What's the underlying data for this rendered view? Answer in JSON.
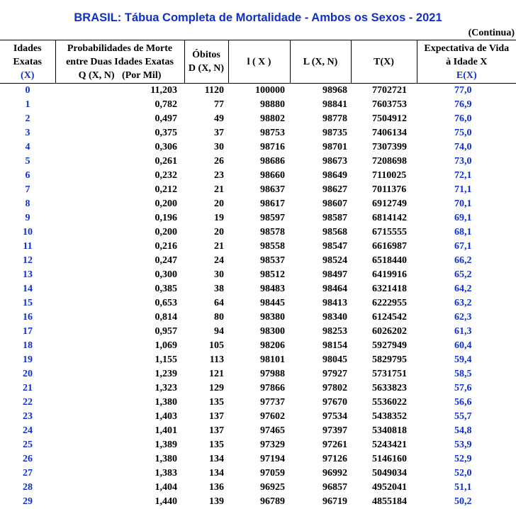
{
  "title": "BRASIL: Tábua Completa de Mortalidade - Ambos os Sexos - 2021",
  "continua": "(Continua)",
  "headers": {
    "age": [
      "Idades",
      "Exatas",
      "(X)"
    ],
    "q": [
      "Probabilidades de Morte",
      "entre Duas Idades Exatas",
      "Q (X, N)   (Por Mil)"
    ],
    "d": [
      "Óbitos",
      "D (X, N)"
    ],
    "l": [
      "l ( X )"
    ],
    "L": [
      "L (X, N)"
    ],
    "T": [
      "T(X)"
    ],
    "e": [
      "Expectativa de Vida",
      "à Idade X",
      "E(X)"
    ]
  },
  "rows": [
    [
      "0",
      "11,203",
      "1120",
      "100000",
      "98968",
      "7702721",
      "77,0"
    ],
    [
      "1",
      "0,782",
      "77",
      "98880",
      "98841",
      "7603753",
      "76,9"
    ],
    [
      "2",
      "0,497",
      "49",
      "98802",
      "98778",
      "7504912",
      "76,0"
    ],
    [
      "3",
      "0,375",
      "37",
      "98753",
      "98735",
      "7406134",
      "75,0"
    ],
    [
      "4",
      "0,306",
      "30",
      "98716",
      "98701",
      "7307399",
      "74,0"
    ],
    [
      "5",
      "0,261",
      "26",
      "98686",
      "98673",
      "7208698",
      "73,0"
    ],
    [
      "6",
      "0,232",
      "23",
      "98660",
      "98649",
      "7110025",
      "72,1"
    ],
    [
      "7",
      "0,212",
      "21",
      "98637",
      "98627",
      "7011376",
      "71,1"
    ],
    [
      "8",
      "0,200",
      "20",
      "98617",
      "98607",
      "6912749",
      "70,1"
    ],
    [
      "9",
      "0,196",
      "19",
      "98597",
      "98587",
      "6814142",
      "69,1"
    ],
    [
      "10",
      "0,200",
      "20",
      "98578",
      "98568",
      "6715555",
      "68,1"
    ],
    [
      "11",
      "0,216",
      "21",
      "98558",
      "98547",
      "6616987",
      "67,1"
    ],
    [
      "12",
      "0,247",
      "24",
      "98537",
      "98524",
      "6518440",
      "66,2"
    ],
    [
      "13",
      "0,300",
      "30",
      "98512",
      "98497",
      "6419916",
      "65,2"
    ],
    [
      "14",
      "0,385",
      "38",
      "98483",
      "98464",
      "6321418",
      "64,2"
    ],
    [
      "15",
      "0,653",
      "64",
      "98445",
      "98413",
      "6222955",
      "63,2"
    ],
    [
      "16",
      "0,814",
      "80",
      "98380",
      "98340",
      "6124542",
      "62,3"
    ],
    [
      "17",
      "0,957",
      "94",
      "98300",
      "98253",
      "6026202",
      "61,3"
    ],
    [
      "18",
      "1,069",
      "105",
      "98206",
      "98154",
      "5927949",
      "60,4"
    ],
    [
      "19",
      "1,155",
      "113",
      "98101",
      "98045",
      "5829795",
      "59,4"
    ],
    [
      "20",
      "1,239",
      "121",
      "97988",
      "97927",
      "5731751",
      "58,5"
    ],
    [
      "21",
      "1,323",
      "129",
      "97866",
      "97802",
      "5633823",
      "57,6"
    ],
    [
      "22",
      "1,380",
      "135",
      "97737",
      "97670",
      "5536022",
      "56,6"
    ],
    [
      "23",
      "1,403",
      "137",
      "97602",
      "97534",
      "5438352",
      "55,7"
    ],
    [
      "24",
      "1,401",
      "137",
      "97465",
      "97397",
      "5340818",
      "54,8"
    ],
    [
      "25",
      "1,389",
      "135",
      "97329",
      "97261",
      "5243421",
      "53,9"
    ],
    [
      "26",
      "1,380",
      "134",
      "97194",
      "97126",
      "5146160",
      "52,9"
    ],
    [
      "27",
      "1,383",
      "134",
      "97059",
      "96992",
      "5049034",
      "52,0"
    ],
    [
      "28",
      "1,404",
      "136",
      "96925",
      "96857",
      "4952041",
      "51,1"
    ],
    [
      "29",
      "1,440",
      "139",
      "96789",
      "96719",
      "4855184",
      "50,2"
    ]
  ]
}
